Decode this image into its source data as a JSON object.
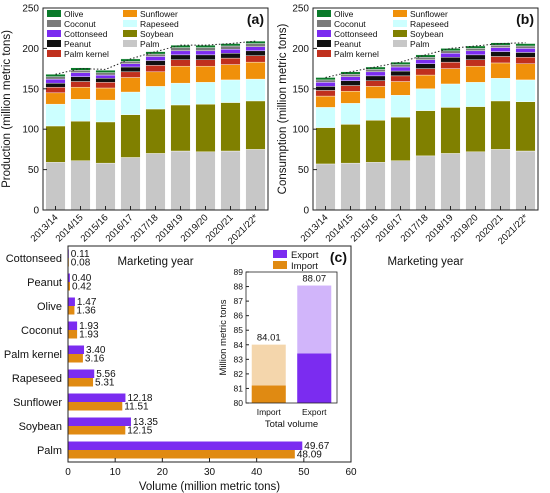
{
  "figure": {
    "panels": [
      "(a)",
      "(b)",
      "(c)"
    ]
  },
  "chart_data": [
    {
      "type": "bar",
      "panel": "(a)",
      "stacked": true,
      "ylabel": "Production (million metric tons)",
      "xlabel": "Marketing year",
      "ylim": [
        0,
        250
      ],
      "yticks": [
        0,
        50,
        100,
        150,
        200,
        250
      ],
      "categories": [
        "2013/14",
        "2014/15",
        "2015/16",
        "2016/17",
        "2017/18",
        "2018/19",
        "2019/20",
        "2020/21",
        "2021/22*"
      ],
      "series": [
        {
          "name": "Palm",
          "color": "#c7c7c7",
          "values": [
            59,
            61,
            58,
            65,
            70,
            73,
            72,
            73,
            75
          ]
        },
        {
          "name": "Soybean",
          "color": "#808000",
          "values": [
            45,
            49,
            51,
            53,
            55,
            57,
            59,
            60,
            60
          ]
        },
        {
          "name": "Rapeseed",
          "color": "#ccffff",
          "values": [
            27,
            27,
            27,
            28,
            28,
            27,
            27,
            28,
            27
          ]
        },
        {
          "name": "Sunflower",
          "color": "#f0900a",
          "values": [
            14,
            15,
            15,
            18,
            18,
            21,
            20,
            19,
            21
          ]
        },
        {
          "name": "Palm kernel",
          "color": "#c0301e",
          "values": [
            7,
            7,
            7,
            7,
            8,
            8,
            8,
            8,
            8
          ]
        },
        {
          "name": "Peanut",
          "color": "#111111",
          "values": [
            5,
            6,
            5,
            6,
            6,
            6,
            6,
            6,
            6
          ]
        },
        {
          "name": "Cottonseed",
          "color": "#7b2cf0",
          "values": [
            5,
            5,
            4,
            4,
            5,
            5,
            5,
            5,
            5
          ]
        },
        {
          "name": "Coconut",
          "color": "#7a7a7a",
          "values": [
            3,
            3,
            3,
            3,
            3,
            4,
            4,
            4,
            4
          ]
        },
        {
          "name": "Olive",
          "color": "#0a7a2a",
          "values": [
            3,
            3,
            3,
            3,
            3,
            3,
            3,
            3,
            3
          ]
        }
      ],
      "trend": [
        168,
        175,
        174,
        187,
        196,
        204,
        204,
        206,
        209
      ],
      "legend": [
        "Olive",
        "Sunflower",
        "Coconut",
        "Rapeseed",
        "Cottonseed",
        "Soybean",
        "Peanut",
        "Palm",
        "Palm kernel"
      ]
    },
    {
      "type": "bar",
      "panel": "(b)",
      "stacked": true,
      "ylabel": "Consumption (million metric tons)",
      "xlabel": "Marketing year",
      "ylim": [
        0,
        250
      ],
      "yticks": [
        0,
        50,
        100,
        150,
        200,
        250
      ],
      "categories": [
        "2013/14",
        "2014/15",
        "2015/16",
        "2016/17",
        "2017/18",
        "2018/19",
        "2019/20",
        "2020/21",
        "2021/22*"
      ],
      "series": [
        {
          "name": "Palm",
          "color": "#c7c7c7",
          "values": [
            57,
            58,
            59,
            61,
            67,
            70,
            72,
            75,
            73
          ]
        },
        {
          "name": "Soybean",
          "color": "#808000",
          "values": [
            45,
            48,
            52,
            54,
            56,
            57,
            56,
            60,
            61
          ]
        },
        {
          "name": "Rapeseed",
          "color": "#ccffff",
          "values": [
            25,
            26,
            27,
            27,
            27,
            29,
            30,
            28,
            27
          ]
        },
        {
          "name": "Sunflower",
          "color": "#f0900a",
          "values": [
            14,
            15,
            15,
            17,
            17,
            19,
            20,
            19,
            20
          ]
        },
        {
          "name": "Palm kernel",
          "color": "#c0301e",
          "values": [
            7,
            7,
            7,
            7,
            8,
            8,
            8,
            8,
            8
          ]
        },
        {
          "name": "Peanut",
          "color": "#111111",
          "values": [
            5,
            6,
            6,
            6,
            6,
            6,
            6,
            6,
            6
          ]
        },
        {
          "name": "Cottonseed",
          "color": "#7b2cf0",
          "values": [
            5,
            5,
            5,
            5,
            5,
            5,
            5,
            5,
            5
          ]
        },
        {
          "name": "Coconut",
          "color": "#7a7a7a",
          "values": [
            3,
            3,
            3,
            3,
            3,
            3,
            3,
            3,
            3
          ]
        },
        {
          "name": "Olive",
          "color": "#0a7a2a",
          "values": [
            3,
            3,
            3,
            3,
            3,
            3,
            3,
            3,
            3
          ]
        }
      ],
      "trend": [
        164,
        171,
        177,
        183,
        192,
        200,
        203,
        206,
        207
      ],
      "legend": [
        "Olive",
        "Sunflower",
        "Coconut",
        "Rapeseed",
        "Cottonseed",
        "Soybean",
        "Peanut",
        "Palm",
        "Palm kernel"
      ]
    },
    {
      "type": "bar",
      "panel": "(c)",
      "orientation": "horizontal",
      "xlabel": "Volume (million metric tons)",
      "xlim": [
        0,
        60
      ],
      "xticks": [
        0,
        10,
        20,
        30,
        40,
        50,
        60
      ],
      "categories": [
        "Cottonseed",
        "Peanut",
        "Olive",
        "Coconut",
        "Palm kernel",
        "Rapeseed",
        "Sunflower",
        "Soybean",
        "Palm"
      ],
      "series": [
        {
          "name": "Export",
          "color": "#7b2cf0",
          "values": [
            0.11,
            0.4,
            1.47,
            1.93,
            3.4,
            5.56,
            12.18,
            13.35,
            49.67
          ],
          "labels": [
            "0.11",
            "0.40",
            "1.47",
            "1.93",
            "3.40",
            "5.56",
            "12.18",
            "13.35",
            "49.67"
          ]
        },
        {
          "name": "Import",
          "color": "#e08a12",
          "values": [
            0.08,
            0.42,
            1.36,
            1.93,
            3.16,
            5.31,
            11.51,
            12.15,
            48.09
          ],
          "labels": [
            "0.08",
            "0.42",
            "1.36",
            "1.93",
            "3.16",
            "5.31",
            "11.51",
            "12.15",
            "48.09"
          ]
        }
      ],
      "legend": [
        "Export",
        "Import"
      ]
    },
    {
      "type": "bar",
      "panel": "(c) inset",
      "ylabel": "Million metric tons",
      "xlabel": "Total volume",
      "ylim": [
        80,
        89
      ],
      "yticks": [
        80,
        81,
        82,
        83,
        84,
        85,
        86,
        87,
        88,
        89
      ],
      "categories": [
        "Import",
        "Export"
      ],
      "values": [
        84.01,
        88.07
      ],
      "labels": [
        "84.01",
        "88.07"
      ]
    }
  ]
}
